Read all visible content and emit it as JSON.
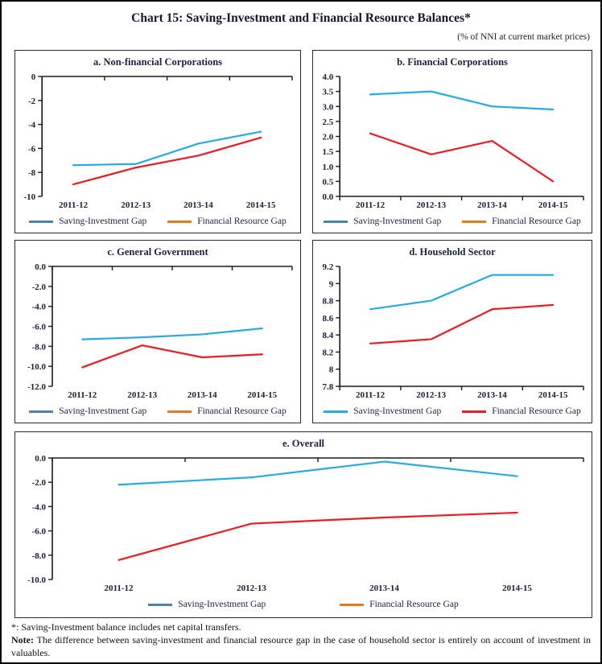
{
  "page": {
    "title": "Chart 15: Saving-Investment and Financial Resource Balances*",
    "subtitle": "(% of NNI at current market prices)"
  },
  "colors": {
    "saving_investment_line": "#29ABE2",
    "financial_resource_line": "#EC1C24",
    "legend_blue": "#4E81B0",
    "legend_orange": "#E87722",
    "axis": "#1a1a1a"
  },
  "chart_data": [
    {
      "id": "a",
      "type": "line",
      "title": "a. Non-financial Corporations",
      "categories": [
        "2011-12",
        "2012-13",
        "2013-14",
        "2014-15"
      ],
      "series": [
        {
          "name": "Saving-Investment Gap",
          "color": "#29ABE2",
          "values": [
            -7.4,
            -7.3,
            -5.6,
            -4.6
          ]
        },
        {
          "name": "Financial Resource Gap",
          "color": "#EC1C24",
          "values": [
            -9.0,
            -7.6,
            -6.6,
            -5.1
          ]
        }
      ],
      "legend": [
        {
          "label": "Saving-Investment Gap",
          "color": "#4E81B0"
        },
        {
          "label": "Financial Resource Gap",
          "color": "#E87722"
        }
      ],
      "ylim": [
        -10,
        0
      ],
      "x_axis_at": 0,
      "ytick_labels": [
        "0",
        "-2",
        "-4",
        "-6",
        "-8",
        "-10"
      ],
      "ytick_values": [
        0,
        -2,
        -4,
        -6,
        -8,
        -10
      ],
      "grid": false,
      "legend_position": "bottom"
    },
    {
      "id": "b",
      "type": "line",
      "title": "b. Financial Corporations",
      "categories": [
        "2011-12",
        "2012-13",
        "2013-14",
        "2014-15"
      ],
      "series": [
        {
          "name": "Saving-Investment Gap",
          "color": "#29ABE2",
          "values": [
            3.4,
            3.5,
            3.0,
            2.9
          ]
        },
        {
          "name": "Financial Resource Gap",
          "color": "#EC1C24",
          "values": [
            2.1,
            1.4,
            1.85,
            0.5
          ]
        }
      ],
      "legend": [
        {
          "label": "Saving-Investment Gap",
          "color": "#4E81B0"
        },
        {
          "label": "Financial Resource Gap",
          "color": "#E87722"
        }
      ],
      "ylim": [
        0,
        4
      ],
      "x_axis_at": 0,
      "ytick_labels": [
        "4.0",
        "3.5",
        "3.0",
        "2.5",
        "2.0",
        "1.5",
        "1.0",
        "0.5",
        "0.0"
      ],
      "ytick_values": [
        4,
        3.5,
        3,
        2.5,
        2,
        1.5,
        1,
        0.5,
        0
      ],
      "grid": false,
      "legend_position": "bottom"
    },
    {
      "id": "c",
      "type": "line",
      "title": "c. General Government",
      "categories": [
        "2011-12",
        "2012-13",
        "2013-14",
        "2014-15"
      ],
      "series": [
        {
          "name": "Saving-Investment Gap",
          "color": "#29ABE2",
          "values": [
            -7.3,
            -7.1,
            -6.8,
            -6.2
          ]
        },
        {
          "name": "Financial Resource Gap",
          "color": "#EC1C24",
          "values": [
            -10.1,
            -7.9,
            -9.1,
            -8.8
          ]
        }
      ],
      "legend": [
        {
          "label": "Saving-Investment Gap",
          "color": "#4E81B0"
        },
        {
          "label": "Financial Resource Gap",
          "color": "#E87722"
        }
      ],
      "ylim": [
        -12,
        0
      ],
      "x_axis_at": 0,
      "ytick_labels": [
        "0.0",
        "-2.0",
        "-4.0",
        "-6.0",
        "-8.0",
        "-10.0",
        "-12.0"
      ],
      "ytick_values": [
        0,
        -2,
        -4,
        -6,
        -8,
        -10,
        -12
      ],
      "grid": false,
      "legend_position": "bottom"
    },
    {
      "id": "d",
      "type": "line",
      "title": "d. Household Sector",
      "categories": [
        "2011-12",
        "2012-13",
        "2013-14",
        "2014-15"
      ],
      "series": [
        {
          "name": "Saving-Investment Gap",
          "color": "#29ABE2",
          "values": [
            8.7,
            8.8,
            9.1,
            9.1
          ]
        },
        {
          "name": "Financial Resource Gap",
          "color": "#EC1C24",
          "values": [
            8.3,
            8.35,
            8.7,
            8.75
          ]
        }
      ],
      "legend": [
        {
          "label": "Saving-Investment Gap",
          "color": "#29ABE2"
        },
        {
          "label": "Financial Resource Gap",
          "color": "#EC1C24"
        }
      ],
      "ylim": [
        7.8,
        9.2
      ],
      "x_axis_at": 7.8,
      "ytick_labels": [
        "9.2",
        "9",
        "8.8",
        "8.6",
        "8.4",
        "8.2",
        "8",
        "7.8"
      ],
      "ytick_values": [
        9.2,
        9,
        8.8,
        8.6,
        8.4,
        8.2,
        8,
        7.8
      ],
      "grid": false,
      "legend_position": "bottom"
    },
    {
      "id": "e",
      "type": "line",
      "title": "e. Overall",
      "categories": [
        "2011-12",
        "2012-13",
        "2013-14",
        "2014-15"
      ],
      "series": [
        {
          "name": "Saving-Investment Gap",
          "color": "#29ABE2",
          "values": [
            -2.2,
            -1.6,
            -0.3,
            -1.5
          ]
        },
        {
          "name": "Financial Resource Gap",
          "color": "#EC1C24",
          "values": [
            -8.4,
            -5.4,
            -4.9,
            -4.5
          ]
        }
      ],
      "legend": [
        {
          "label": "Saving-Investment Gap",
          "color": "#4E81B0"
        },
        {
          "label": "Financial Resource Gap",
          "color": "#E87722"
        }
      ],
      "ylim": [
        -10,
        0
      ],
      "x_axis_at": 0,
      "ytick_labels": [
        "0.0",
        "-2.0",
        "-4.0",
        "-6.0",
        "-8.0",
        "-10.0"
      ],
      "ytick_values": [
        0,
        -2,
        -4,
        -6,
        -8,
        -10
      ],
      "grid": false,
      "legend_position": "bottom"
    }
  ],
  "footer": {
    "line1": "*: Saving-Investment balance includes net capital transfers.",
    "note_label": "Note:",
    "note_text": "The difference between saving-investment and financial resource gap in the case of household sector is entirely on account of investment in valuables."
  }
}
